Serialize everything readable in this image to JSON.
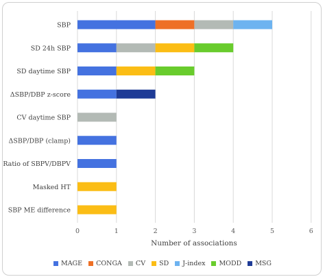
{
  "chart_data": {
    "type": "bar",
    "orientation": "horizontal",
    "stacked": true,
    "categories": [
      "SBP",
      "SD 24h SBP",
      "SD daytime SBP",
      "ΔSBP/DBP z-score",
      "CV daytime SBP",
      "ΔSBP/DBP (clamp)",
      "Ratio of SBPV/DBPV",
      "Masked HT",
      "SBP ME difference"
    ],
    "series": [
      {
        "name": "MAGE",
        "color": "#4472e0",
        "values": [
          2,
          1,
          1,
          1,
          0,
          1,
          1,
          0,
          0
        ]
      },
      {
        "name": "CONGA",
        "color": "#ee7026",
        "values": [
          1,
          0,
          0,
          0,
          0,
          0,
          0,
          0,
          0
        ]
      },
      {
        "name": "CV",
        "color": "#b3bab5",
        "values": [
          1,
          1,
          0,
          0,
          1,
          0,
          0,
          0,
          0
        ]
      },
      {
        "name": "SD",
        "color": "#fbbd15",
        "values": [
          0,
          1,
          1,
          0,
          0,
          0,
          0,
          1,
          1
        ]
      },
      {
        "name": "J-index",
        "color": "#6db3f0",
        "values": [
          1,
          0,
          0,
          0,
          0,
          0,
          0,
          0,
          0
        ]
      },
      {
        "name": "MODD",
        "color": "#69cc2d",
        "values": [
          0,
          1,
          1,
          0,
          0,
          0,
          0,
          0,
          0
        ]
      },
      {
        "name": "MSG",
        "color": "#1e3b96",
        "values": [
          0,
          0,
          0,
          1,
          0,
          0,
          0,
          0,
          0
        ]
      }
    ],
    "xlabel": "Number of associations",
    "ylabel": "",
    "xlim": [
      0,
      6
    ],
    "xticks": [
      "0",
      "1",
      "2",
      "3",
      "4",
      "5",
      "6"
    ],
    "grid": true,
    "legend_position": "bottom"
  }
}
